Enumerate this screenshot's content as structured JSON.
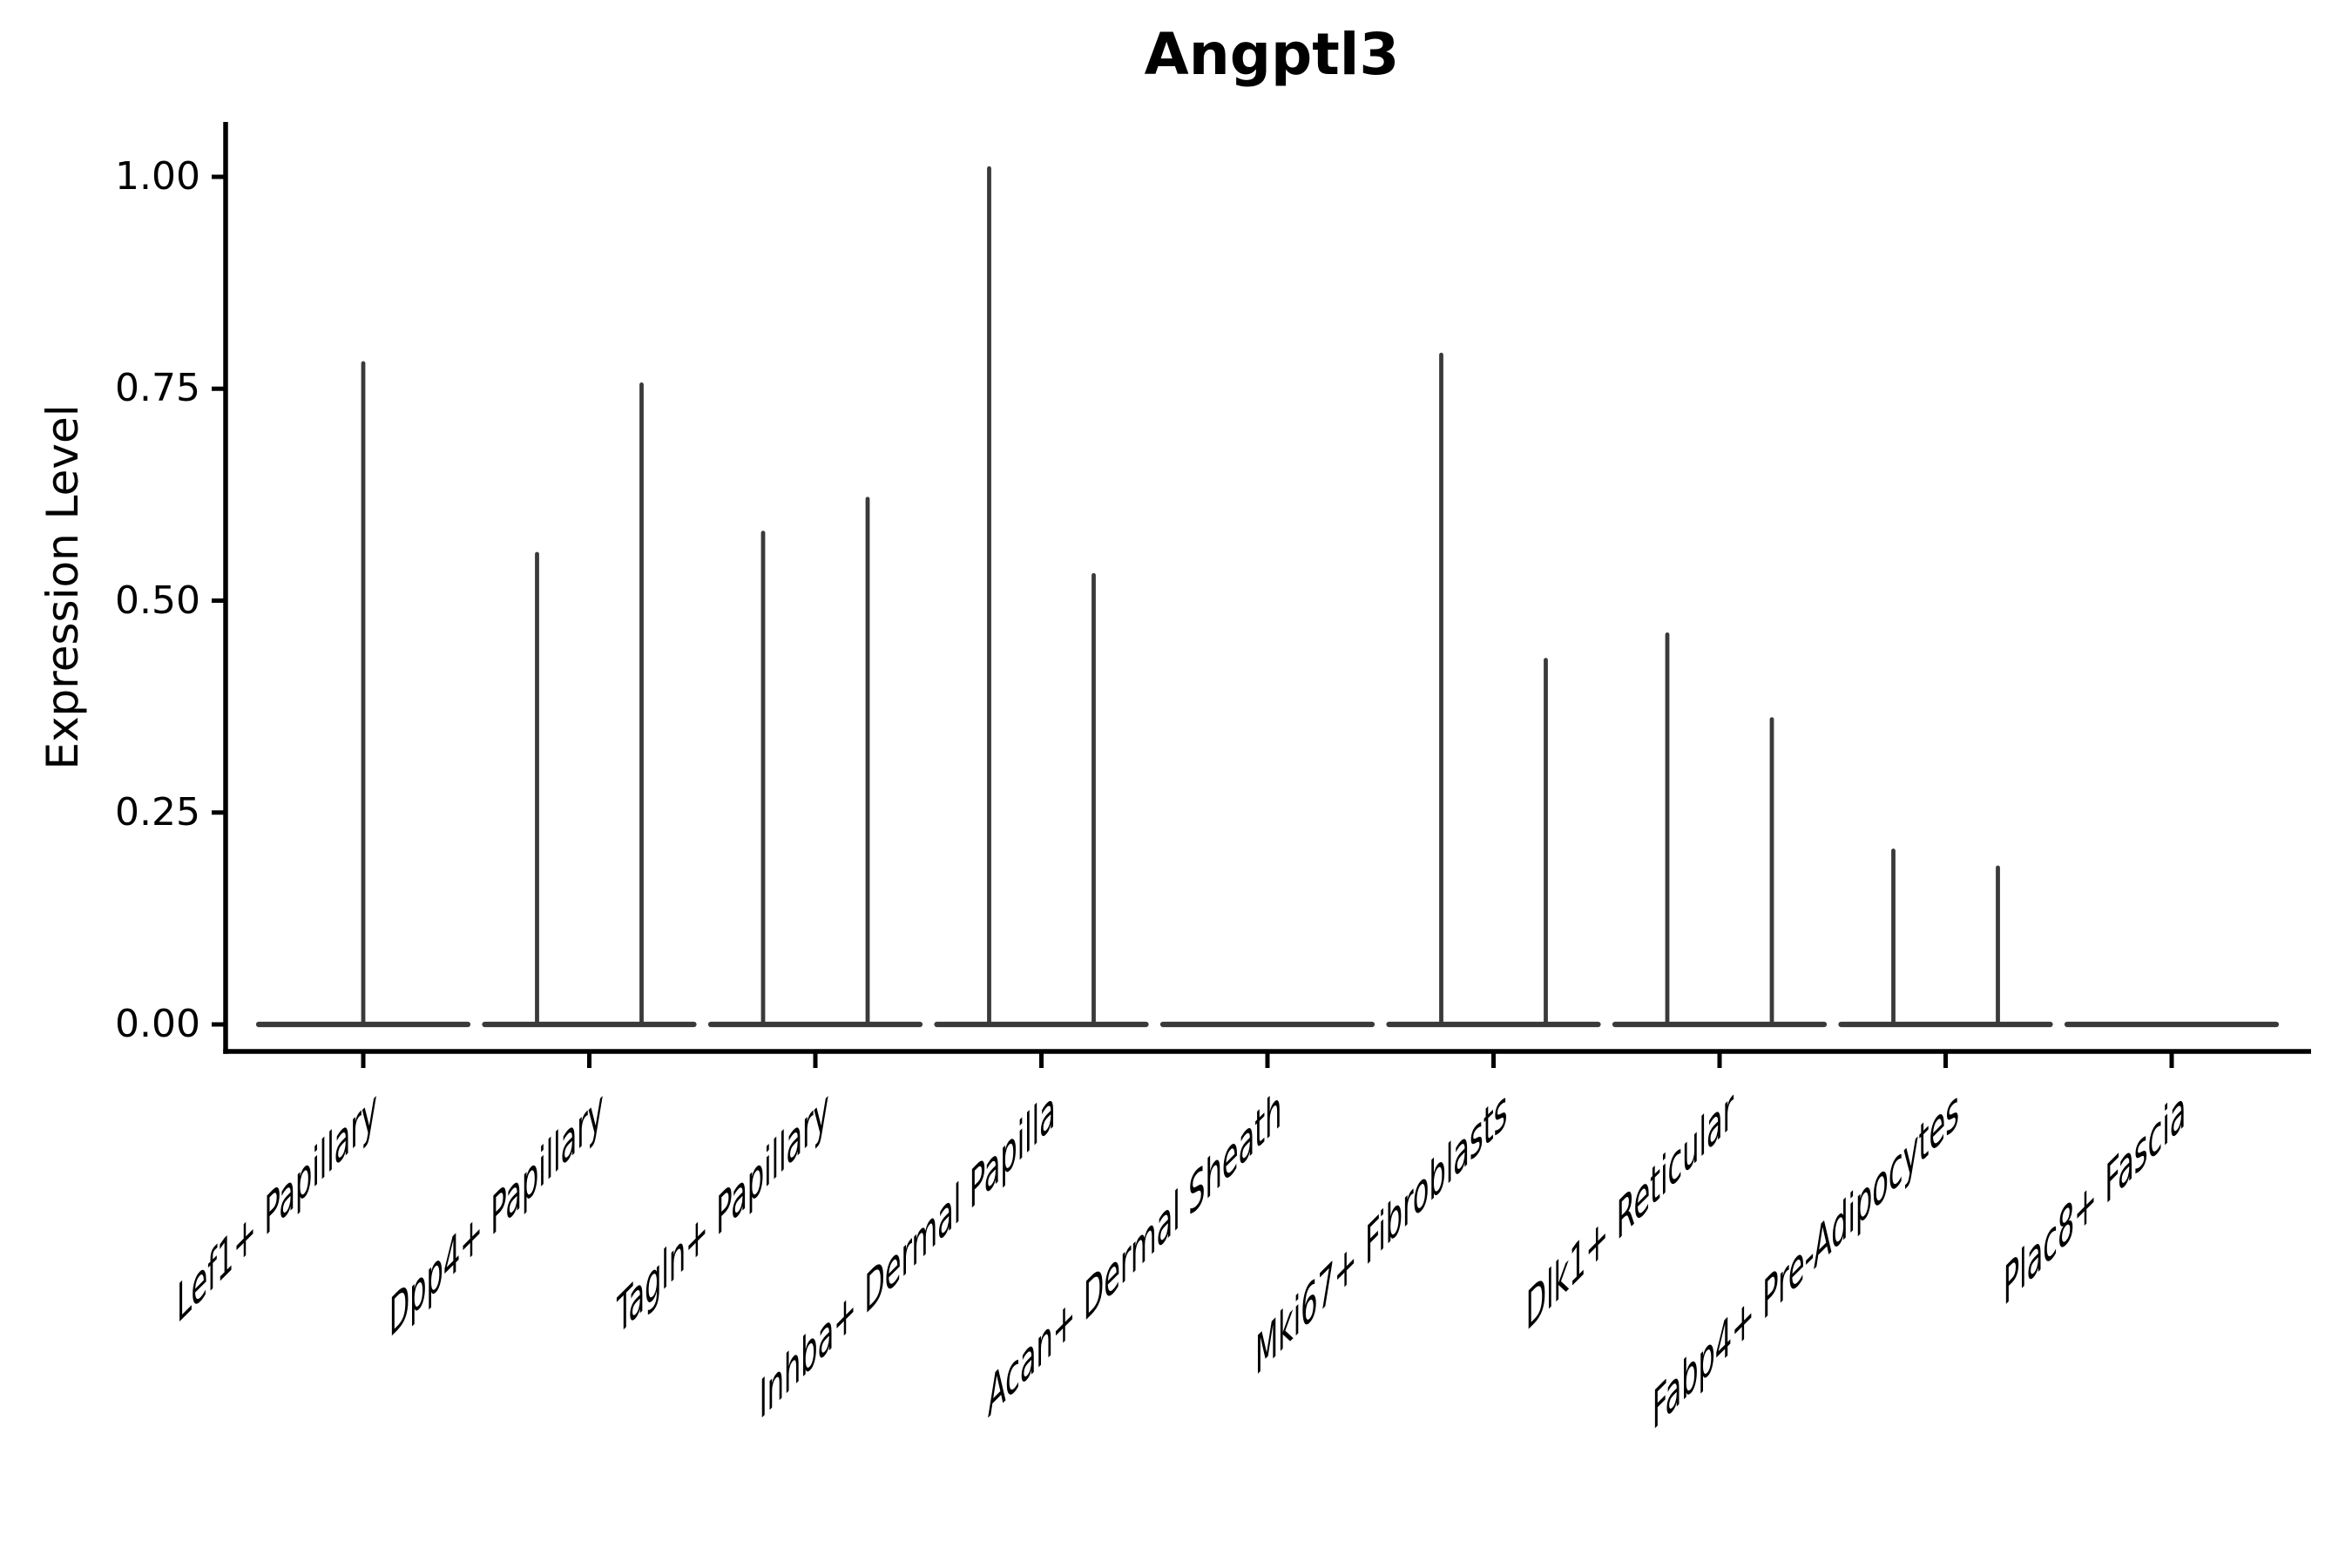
{
  "figure": {
    "title": "Angptl3",
    "y_axis_label": "Expression Level",
    "background": "#ffffff"
  },
  "chart_data": {
    "type": "violin",
    "title": "Angptl3",
    "xlabel": "",
    "ylabel": "Expression Level",
    "ylim": [
      0,
      1.05
    ],
    "grid": false,
    "legend": "none",
    "style_note": "each violin is collapsed to a thin horizontal base at expression 0 with thin vertical spikes rising to the maximum expression; most categories contain two dodged spikes, Lef1+ Papillary has one centered spike, Acan+ Dermal Sheath and Plac8+ Fascia are flat at 0",
    "yticks": [
      {
        "label": "0.00",
        "value": 0
      },
      {
        "label": "0.25",
        "value": 0.25
      },
      {
        "label": "0.50",
        "value": 0.5
      },
      {
        "label": "0.75",
        "value": 0.75
      },
      {
        "label": "1.00",
        "value": 1
      }
    ],
    "categories": [
      "Lef1+ Papillary",
      "Dpp4+ Papillary",
      "Tagln+ Papillary",
      "Inhba+ Dermal Papilla",
      "Acan+ Dermal Sheath",
      "Mki67+ Fibroblasts",
      "Dlk1+ Reticular",
      "Fabp4+ Pre-Adipocytes",
      "Plac8+ Fascia"
    ],
    "violins": [
      {
        "category": "Lef1+ Papillary",
        "baseline_value": 0,
        "spikes": [
          {
            "position": "center",
            "offset_frac": 0,
            "max": 0.78
          }
        ]
      },
      {
        "category": "Dpp4+ Papillary",
        "baseline_value": 0,
        "spikes": [
          {
            "position": "left",
            "offset_frac": -0.25,
            "max": 0.555
          },
          {
            "position": "right",
            "offset_frac": 0.25,
            "max": 0.755
          }
        ]
      },
      {
        "category": "Tagln+ Papillary",
        "baseline_value": 0,
        "spikes": [
          {
            "position": "left",
            "offset_frac": -0.25,
            "max": 0.58
          },
          {
            "position": "right",
            "offset_frac": 0.25,
            "max": 0.62
          }
        ]
      },
      {
        "category": "Inhba+ Dermal Papilla",
        "baseline_value": 0,
        "spikes": [
          {
            "position": "left",
            "offset_frac": -0.25,
            "max": 1.01
          },
          {
            "position": "right",
            "offset_frac": 0.25,
            "max": 0.53
          }
        ]
      },
      {
        "category": "Acan+ Dermal Sheath",
        "baseline_value": 0,
        "spikes": []
      },
      {
        "category": "Mki67+ Fibroblasts",
        "baseline_value": 0,
        "spikes": [
          {
            "position": "left",
            "offset_frac": -0.25,
            "max": 0.79
          },
          {
            "position": "right",
            "offset_frac": 0.25,
            "max": 0.43
          }
        ]
      },
      {
        "category": "Dlk1+ Reticular",
        "baseline_value": 0,
        "spikes": [
          {
            "position": "left",
            "offset_frac": -0.25,
            "max": 0.46
          },
          {
            "position": "right",
            "offset_frac": 0.25,
            "max": 0.36
          }
        ]
      },
      {
        "category": "Fabp4+ Pre-Adipocytes",
        "baseline_value": 0,
        "spikes": [
          {
            "position": "left",
            "offset_frac": -0.25,
            "max": 0.205
          },
          {
            "position": "right",
            "offset_frac": 0.25,
            "max": 0.185
          }
        ]
      },
      {
        "category": "Plac8+ Fascia",
        "baseline_value": 0,
        "spikes": []
      }
    ],
    "colors": {
      "violin": "#3a3a3a",
      "axis": "#000000",
      "text": "#000000",
      "background": "#ffffff"
    }
  }
}
